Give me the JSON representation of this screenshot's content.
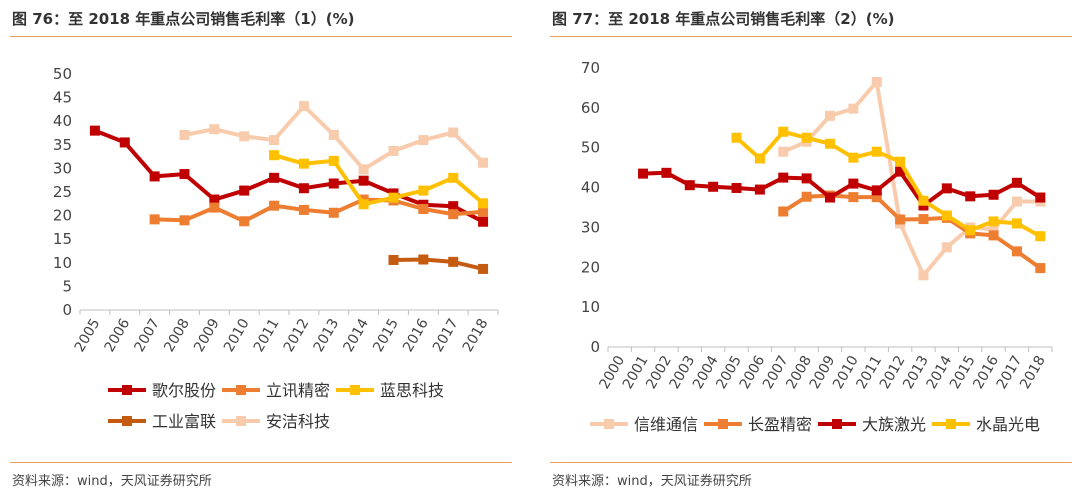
{
  "figures": [
    {
      "title": "图 76：至 2018 年重点公司销售毛利率（1）(%)",
      "source": "资料来源：wind，天风证券研究所"
    },
    {
      "title": "图 77：至 2018 年重点公司销售毛利率（2）(%)",
      "source": "资料来源：wind，天风证券研究所"
    }
  ],
  "chart_data": [
    {
      "type": "line",
      "title": "",
      "xlabel": "",
      "ylabel": "",
      "categories": [
        "2005",
        "2006",
        "2007",
        "2008",
        "2009",
        "2010",
        "2011",
        "2012",
        "2013",
        "2014",
        "2015",
        "2016",
        "2017",
        "2018"
      ],
      "ylim": [
        0,
        50
      ],
      "yticks": [
        0,
        5,
        10,
        15,
        20,
        25,
        30,
        35,
        40,
        45,
        50
      ],
      "grid": false,
      "legend_position": "bottom",
      "series": [
        {
          "name": "歌尔股份",
          "color": "#c00000",
          "values": [
            38,
            35.5,
            28.3,
            28.8,
            23.4,
            25.3,
            28,
            25.8,
            26.8,
            27.4,
            24.7,
            22.3,
            22,
            18.7
          ]
        },
        {
          "name": "立讯精密",
          "color": "#ed7d31",
          "values": [
            null,
            null,
            19.2,
            19,
            21.7,
            18.8,
            22.1,
            21.2,
            20.6,
            23.4,
            23.2,
            21.4,
            20.3,
            20.8
          ]
        },
        {
          "name": "蓝思科技",
          "color": "#ffc000",
          "values": [
            null,
            null,
            null,
            null,
            null,
            null,
            32.8,
            31,
            31.6,
            22.4,
            23.8,
            25.3,
            28,
            22.6
          ]
        },
        {
          "name": "工业富联",
          "color": "#c55a11",
          "values": [
            null,
            null,
            null,
            null,
            null,
            null,
            null,
            null,
            null,
            null,
            10.6,
            10.7,
            10.2,
            8.7
          ]
        },
        {
          "name": "安洁科技",
          "color": "#f8cbad",
          "values": [
            null,
            null,
            null,
            37.1,
            38.3,
            36.8,
            36,
            43.2,
            37.1,
            29.8,
            33.7,
            36,
            37.6,
            31.2
          ]
        }
      ]
    },
    {
      "type": "line",
      "title": "",
      "xlabel": "",
      "ylabel": "",
      "categories": [
        "2000",
        "2001",
        "2002",
        "2003",
        "2004",
        "2005",
        "2006",
        "2007",
        "2008",
        "2009",
        "2010",
        "2011",
        "2012",
        "2013",
        "2014",
        "2015",
        "2016",
        "2017",
        "2018"
      ],
      "ylim": [
        0,
        70
      ],
      "yticks": [
        0,
        10,
        20,
        30,
        40,
        50,
        60,
        70
      ],
      "grid": false,
      "legend_position": "bottom",
      "series": [
        {
          "name": "信维通信",
          "color": "#f8cbad",
          "values": [
            null,
            null,
            null,
            null,
            null,
            null,
            null,
            49,
            51.5,
            58,
            59.8,
            66.5,
            31,
            18,
            25,
            30,
            29.5,
            36.5,
            36.5
          ]
        },
        {
          "name": "长盈精密",
          "color": "#ed7d31",
          "values": [
            null,
            null,
            null,
            null,
            null,
            null,
            null,
            34,
            37.7,
            38,
            37.6,
            37.6,
            32,
            32.1,
            32.4,
            28.5,
            28,
            24,
            19.8
          ]
        },
        {
          "name": "大族激光",
          "color": "#c00000",
          "values": [
            null,
            43.5,
            43.7,
            40.6,
            40.2,
            39.9,
            39.5,
            42.5,
            42.3,
            37.5,
            41,
            39.3,
            44,
            35.5,
            39.8,
            37.8,
            38.2,
            41.2,
            37.5
          ]
        },
        {
          "name": "水晶光电",
          "color": "#ffc000",
          "values": [
            null,
            null,
            null,
            null,
            null,
            52.5,
            47.3,
            54,
            52.5,
            51,
            47.5,
            49,
            46.5,
            36.7,
            33,
            29.3,
            31.5,
            31,
            27.8
          ]
        }
      ]
    }
  ]
}
